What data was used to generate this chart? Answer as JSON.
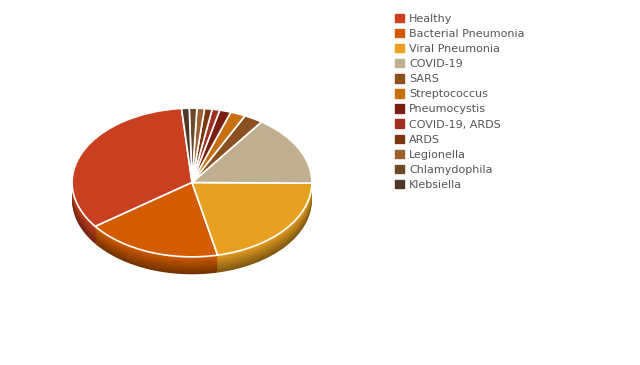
{
  "labels": [
    "Healthy",
    "Bacterial Pneumonia",
    "Viral Pneumonia",
    "COVID-19",
    "SARS",
    "Streptococcus",
    "Pneumocystis",
    "COVID-19, ARDS",
    "ARDS",
    "Legionella",
    "Chlamydophila",
    "Klebsiella"
  ],
  "values": [
    33,
    18,
    21,
    15,
    2.5,
    2,
    1.5,
    1,
    1,
    1,
    1,
    1
  ],
  "colors": [
    "#C94020",
    "#D35C00",
    "#E8A020",
    "#C0B090",
    "#8B5020",
    "#C87010",
    "#7B2010",
    "#A03020",
    "#7A3810",
    "#9A6030",
    "#6A4828",
    "#503828"
  ],
  "startangle": 95,
  "background": "#ffffff",
  "depth_color_factor": 0.55,
  "n_depth_layers": 12,
  "depth_step": 0.018,
  "legend_fontsize": 8,
  "legend_labelspacing": 0.45
}
